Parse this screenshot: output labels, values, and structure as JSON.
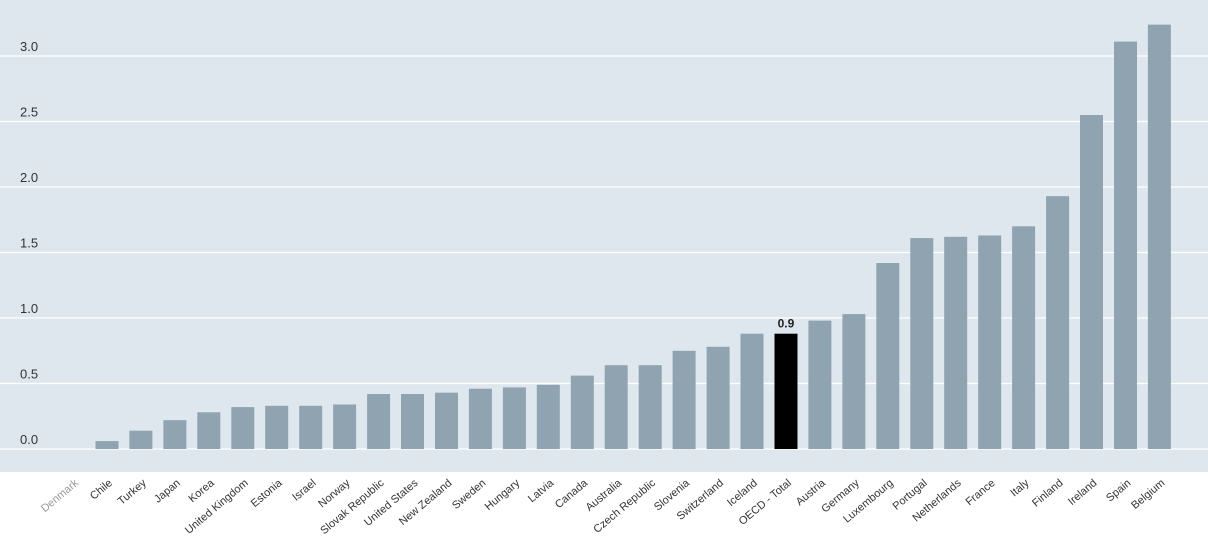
{
  "chart_data": {
    "type": "bar",
    "title": "",
    "xlabel": "",
    "ylabel": "",
    "ylim": [
      0,
      3.3
    ],
    "yticks": [
      "0.0",
      "0.5",
      "1.0",
      "1.5",
      "2.0",
      "2.5",
      "3.0"
    ],
    "grid": true,
    "colors": {
      "plot_bg": "#dfe7ee",
      "bar": "#8fa3b1",
      "highlight": "#000000",
      "grid": "#ffffff",
      "muted_label": "#9a9a9a"
    },
    "categories": [
      "Denmark",
      "Chile",
      "Turkey",
      "Japan",
      "Korea",
      "United Kingdom",
      "Estonia",
      "Israel",
      "Norway",
      "Slovak Republic",
      "United States",
      "New Zealand",
      "Sweden",
      "Hungary",
      "Latvia",
      "Canada",
      "Australia",
      "Czech Republic",
      "Slovenia",
      "Switzerland",
      "Iceland",
      "OECD - Total",
      "Austria",
      "Germany",
      "Luxembourg",
      "Portugal",
      "Netherlands",
      "France",
      "Italy",
      "Finland",
      "Ireland",
      "Spain",
      "Belgium"
    ],
    "values": [
      0.0,
      0.06,
      0.14,
      0.22,
      0.28,
      0.32,
      0.33,
      0.33,
      0.34,
      0.42,
      0.42,
      0.43,
      0.46,
      0.47,
      0.49,
      0.56,
      0.64,
      0.64,
      0.75,
      0.78,
      0.88,
      0.88,
      0.98,
      1.03,
      1.42,
      1.61,
      1.62,
      1.63,
      1.7,
      1.93,
      2.55,
      3.11,
      3.24
    ],
    "highlight_category": "OECD - Total",
    "highlight_value_label": "0.9",
    "muted_category": "Denmark"
  }
}
